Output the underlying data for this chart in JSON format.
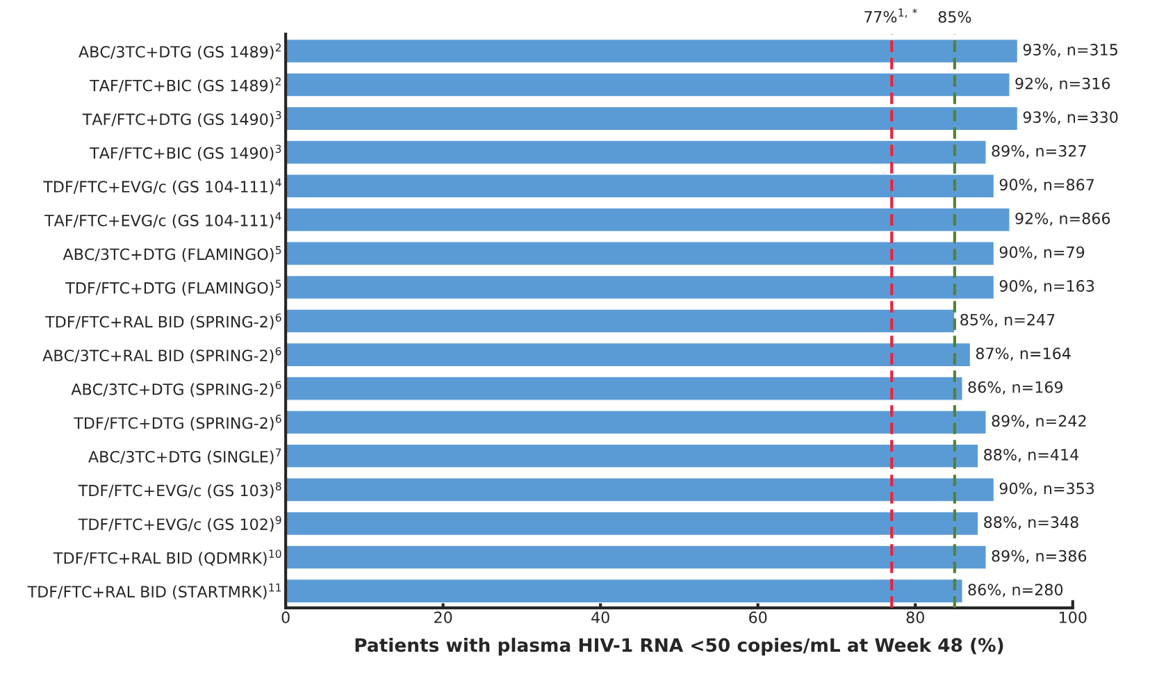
{
  "chart_data": {
    "type": "bar",
    "orientation": "horizontal",
    "categories": [
      "ABC/3TC+DTG (GS 1489)$^{2}$",
      "TAF/FTC+BIC (GS 1489)$^{2}$",
      "TAF/FTC+DTG (GS 1490)$^{3}$",
      "TAF/FTC+BIC (GS 1490)$^{3}$",
      "TDF/FTC+EVG/c (GS 104-111)$^{4}$",
      "TAF/FTC+EVG/c (GS 104-111)$^{4}$",
      "ABC/3TC+DTG (FLAMINGO)$^{5}$",
      "TDF/FTC+DTG (FLAMINGO)$^{5}$",
      "TDF/FTC+RAL BID (SPRING-2)$^{6}$",
      "ABC/3TC+RAL BID (SPRING-2)$^{6}$",
      "ABC/3TC+DTG (SPRING-2)$^{6}$",
      "TDF/FTC+DTG (SPRING-2)$^{6}$",
      "ABC/3TC+DTG (SINGLE)$^{7}$",
      "TDF/FTC+EVG/c (GS 103)$^{8}$",
      "TDF/FTC+EVG/c (GS 102)$^{9}$",
      "TDF/FTC+RAL BID (QDMRK)$^{10}$",
      "TDF/FTC+RAL BID (STARTMRK)$^{11}$"
    ],
    "values": [
      93,
      92,
      93,
      89,
      90,
      92,
      90,
      90,
      85,
      87,
      86,
      89,
      88,
      90,
      88,
      89,
      86
    ],
    "value_labels": [
      "93%, n=315",
      "92%, n=316",
      "93%, n=330",
      "89%, n=327",
      "90%, n=867",
      "92%, n=866",
      "90%, n=79",
      "90%, n=163",
      "85%, n=247",
      "87%, n=164",
      "86%, n=169",
      "89%, n=242",
      "88%, n=414",
      "90%, n=353",
      "88%, n=348",
      "89%, n=386",
      "86%, n=280"
    ],
    "color": "#5b9bd5",
    "xlabel": "Patients with plasma HIV-1 RNA <50 copies/mL at Week 48 (%)",
    "xlim": [
      0,
      100
    ],
    "xticks": [
      0,
      20,
      40,
      60,
      80,
      100
    ],
    "ref_lines": [
      {
        "axis": "x",
        "value": 77,
        "label": "77%$^{1,*}$",
        "color": "#e8243c",
        "line_style": "dashed"
      },
      {
        "axis": "x",
        "value": 85,
        "label": "85%",
        "color": "#548235",
        "line_style": "dashed"
      }
    ],
    "grid": false,
    "legend": false
  }
}
